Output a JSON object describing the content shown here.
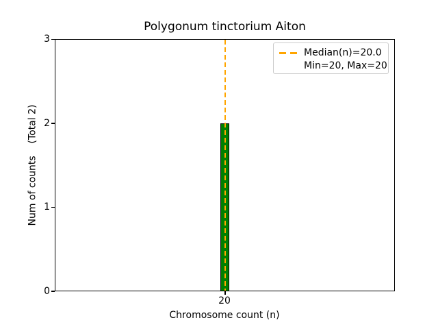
{
  "chart_data": {
    "type": "bar",
    "title": "Polygonum tinctorium Aiton",
    "xlabel": "Chromosome count (n)",
    "ylabel": "Num of counts    (Total 2)",
    "categories": [
      20
    ],
    "values": [
      2
    ],
    "total_counts": 2,
    "ylim": [
      0,
      3
    ],
    "grid": false,
    "xticks": [
      "20"
    ],
    "yticks": [
      "0",
      "1",
      "2",
      "3"
    ],
    "bar_color": "#008000",
    "bar_edge_color": "#000000",
    "median_line": {
      "x": 20,
      "value_label": "Median(n)=20.0",
      "color": "#FFA500",
      "style": "dashed"
    },
    "legend": {
      "position": "upper right",
      "entries": [
        {
          "label": "Median(n)=20.0",
          "marker": "orange-dashed-line"
        },
        {
          "label": "Min=20, Max=20",
          "marker": "none"
        }
      ]
    }
  }
}
